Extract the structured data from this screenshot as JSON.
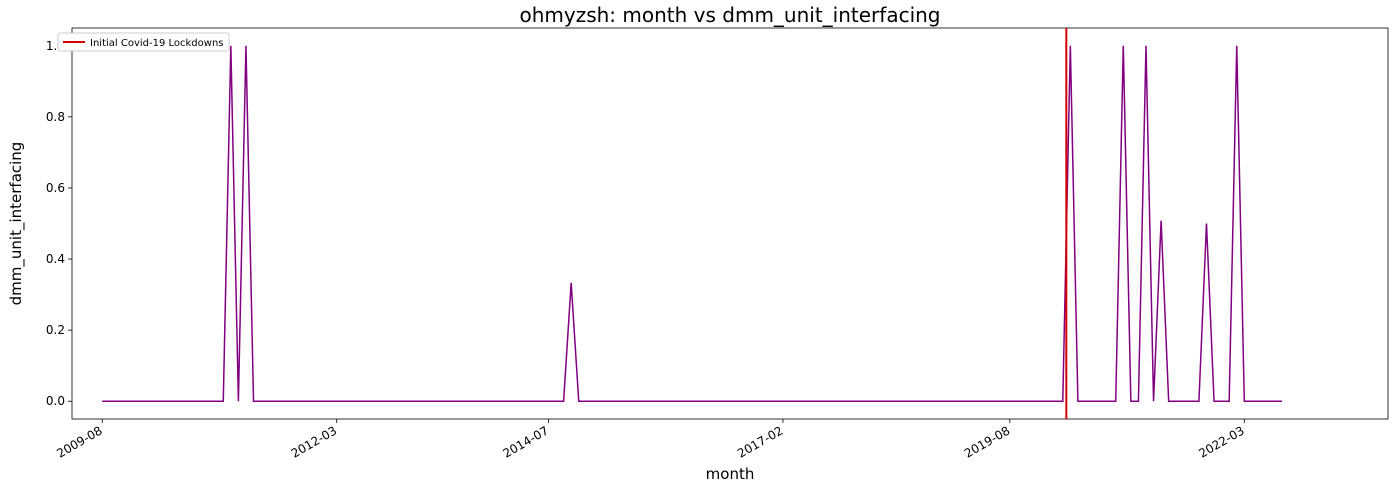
{
  "chart_data": {
    "type": "line",
    "title": "ohmyzsh: month vs dmm_unit_interfacing",
    "xlabel": "month",
    "ylabel": "dmm_unit_interfacing",
    "xlim": [
      "2009-04",
      "2023-10"
    ],
    "ylim": [
      -0.05,
      1.05
    ],
    "x_ticks": [
      "2009-08",
      "2012-03",
      "2014-07",
      "2017-02",
      "2019-08",
      "2022-03"
    ],
    "y_ticks": [
      "0.0",
      "0.2",
      "0.4",
      "0.6",
      "0.8",
      "1.0"
    ],
    "grid": false,
    "legend_placement": "top-left",
    "series": [
      {
        "color": "#800080",
        "x": [
          "2009-08",
          "2010-12",
          "2011-01",
          "2011-02",
          "2011-03",
          "2011-04",
          "2014-09",
          "2014-10",
          "2014-11",
          "2020-03",
          "2020-04",
          "2020-05",
          "2020-10",
          "2020-11",
          "2020-12",
          "2021-01",
          "2021-02",
          "2021-03",
          "2021-04",
          "2021-05",
          "2021-06",
          "2021-07",
          "2021-09",
          "2021-10",
          "2021-11",
          "2021-12",
          "2022-01",
          "2022-02",
          "2022-03",
          "2022-04",
          "2022-08"
        ],
        "y": [
          0,
          0,
          1,
          0,
          1,
          0,
          0,
          0.333,
          0,
          0,
          1,
          0,
          0,
          1,
          0,
          0,
          1,
          0,
          0.508,
          0,
          0,
          0,
          0,
          0.5,
          0,
          0,
          0,
          1,
          0,
          0,
          0
        ]
      }
    ],
    "annotations": [
      {
        "type": "vline",
        "x": "2020-03-15",
        "color": "#d40000",
        "label": "Initial Covid-19 Lockdowns"
      }
    ]
  }
}
